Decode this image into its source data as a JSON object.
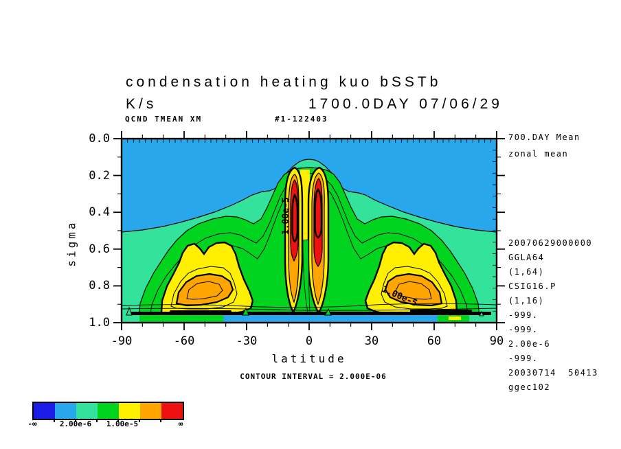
{
  "header": {
    "title": "condensation heating kuo bSSTb",
    "units": "K/s",
    "datetime": "1700.0DAY 07/06/29",
    "var_label": "QCND TMEAN XM",
    "run_id": "#1-122403"
  },
  "notes": {
    "top": [
      "700.DAY Mean",
      "zonal mean"
    ],
    "bottom": [
      "20070629000000",
      "GGLA64",
      "(1,64)",
      "CSIG16.P",
      "(1,16)",
      "-999.",
      "-999.",
      "2.00e-6",
      "-999.",
      "20030714  50413",
      "ggec102"
    ]
  },
  "axes": {
    "x": {
      "label": "latitude",
      "ticks": [
        "-90",
        "-60",
        "-30",
        "0",
        "30",
        "60",
        "90"
      ]
    },
    "y": {
      "label": "sigma",
      "ticks": [
        "0.0",
        "0.2",
        "0.4",
        "0.6",
        "0.8",
        "1.0"
      ]
    }
  },
  "footer": {
    "contour_note": "CONTOUR INTERVAL = 2.000E-06"
  },
  "colorbar": {
    "colors": [
      "#1c1ce8",
      "#29a7ec",
      "#33e39c",
      "#00d41e",
      "#ffef00",
      "#ffa500",
      "#ee1111"
    ],
    "labels": {
      "left": "-∞",
      "mid1": "2.00e-6",
      "mid2": "1.00e-5",
      "right": "∞"
    }
  },
  "plot_labels": {
    "center_column": "1.00e-5",
    "right_blob": "1.00e-5"
  },
  "chart_data": {
    "type": "filled_contour",
    "title": "condensation heating kuo bSSTb",
    "units": "K/s",
    "time_stamp": "1700.0DAY 07/06/29",
    "averaging": "700.DAY Mean, zonal mean",
    "xlabel": "latitude",
    "ylabel": "sigma",
    "xlim": [
      -90,
      90
    ],
    "ylim": [
      0.0,
      1.0
    ],
    "y_axis_inverted": true,
    "x_major_ticks": [
      -90,
      -60,
      -30,
      0,
      30,
      60,
      90
    ],
    "y_major_ticks": [
      0.0,
      0.2,
      0.4,
      0.6,
      0.8,
      1.0
    ],
    "contour_interval": 2e-06,
    "fill_band_boundaries_labeled": [
      "-inf",
      null,
      2e-06,
      null,
      1e-05,
      null,
      null,
      "inf"
    ],
    "fill_colors_low_to_high": [
      "#1c1ce8",
      "#29a7ec",
      "#33e39c",
      "#00d41e",
      "#ffef00",
      "#ffa500",
      "#ee1111"
    ],
    "labeled_contours": [
      {
        "value": 1e-05,
        "label": "1.00e-5",
        "location": {
          "lat": -11,
          "sigma_range": [
            0.23,
            0.53
          ]
        },
        "orientation": "vertical"
      },
      {
        "value": 1e-05,
        "label": "1.00e-5",
        "location": {
          "lat_range": [
            35,
            55
          ],
          "sigma": 0.85
        },
        "orientation": "diagonal"
      }
    ],
    "features": [
      {
        "name": "equatorial heating column south of equator",
        "lat_range": [
          -12,
          -2
        ],
        "sigma_range": [
          0.15,
          0.95
        ],
        "peak_value": "> 2.0e-5 (red core, sigma 0.22-0.66)"
      },
      {
        "name": "equatorial heating column north of equator",
        "lat_range": [
          2,
          12
        ],
        "sigma_range": [
          0.15,
          0.95
        ],
        "peak_value": "> 2.0e-5 (red core, sigma 0.21-0.69)"
      },
      {
        "name": "southern midlatitude maximum",
        "lat": -55,
        "sigma": 0.82,
        "peak_value": "~1.6e-5 (orange core inside yellow region)"
      },
      {
        "name": "northern midlatitude maximum",
        "lat": 55,
        "sigma": 0.82,
        "peak_value": "~1.6e-5 (orange core inside yellow region)"
      },
      {
        "name": "upper-level background",
        "description": "values < 2.0e-6 (light blue) above a dome-shaped 2.0e-6 contour peaking near sigma 0.12 at the equator and descending to sigma ~0.5 at the poles"
      },
      {
        "name": "near-surface low band",
        "lat_range": [
          -40,
          45
        ],
        "sigma_range": [
          0.96,
          1.0
        ],
        "description": "thin light-blue layer under a thick black contour band at sigma ~0.95"
      }
    ],
    "grid_hints": {
      "longitude_points": 64,
      "sigma_levels": 16,
      "dataset": "GGLA64 (1,64), CSIG16.P (1,16)"
    }
  }
}
